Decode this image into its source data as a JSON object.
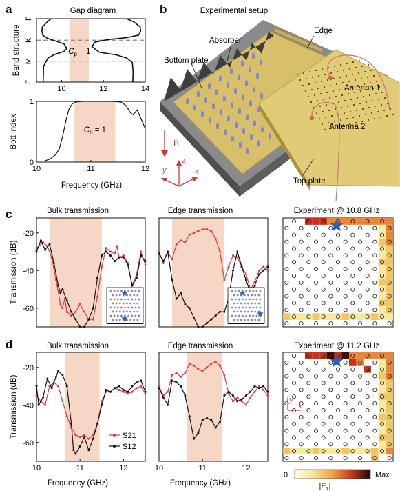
{
  "panel_letters": [
    "a",
    "b",
    "c",
    "d"
  ],
  "chart_data": [
    {
      "id": "a_top",
      "type": "line",
      "title": "Gap diagram",
      "ylabel": "Band structure",
      "xlim": [
        8.8,
        14
      ],
      "xticks": [
        10,
        12,
        14
      ],
      "yticks": [
        "Γ",
        "K",
        "M",
        "Γ"
      ],
      "band_gap": [
        10.4,
        11.3
      ],
      "annotation": {
        "main": "C",
        "sub": "p",
        "rest": " = 1"
      },
      "series": [
        {
          "x": [
            9.5,
            9.35,
            9.08,
            9.06,
            9.1,
            9.32,
            9.7,
            10.12,
            10.25,
            10.1,
            9.7,
            9.35,
            9.14,
            9.12
          ],
          "y": [
            0.0,
            0.04,
            0.13,
            0.2,
            0.26,
            0.31,
            0.35,
            0.4,
            0.47,
            0.52,
            0.56,
            0.62,
            0.75,
            1.0
          ]
        },
        {
          "x": [
            13.1,
            13.45,
            13.76,
            13.78,
            13.68,
            13.1,
            12.2,
            11.6,
            11.45,
            11.8,
            12.6,
            13.1,
            13.38,
            13.42,
            13.4
          ],
          "y": [
            0.0,
            0.05,
            0.13,
            0.2,
            0.26,
            0.3,
            0.33,
            0.37,
            0.44,
            0.53,
            0.57,
            0.62,
            0.69,
            0.85,
            1.0
          ]
        }
      ]
    },
    {
      "id": "a_bottom",
      "type": "line",
      "ylabel": "Bott index",
      "xlabel": "Frequency (GHz)",
      "xlim": [
        10,
        12
      ],
      "ylim": [
        0,
        1
      ],
      "xticks": [
        10,
        11,
        12
      ],
      "yticks": [
        0,
        1
      ],
      "band_gap": [
        10.7,
        11.45
      ],
      "annotation": {
        "main": "C",
        "sub": "b",
        "rest": " = 1"
      },
      "series": [
        {
          "x": [
            10.15,
            10.25,
            10.35,
            10.42,
            10.48,
            10.55,
            10.6,
            10.66,
            10.72,
            10.85,
            11.0,
            11.2,
            11.4,
            11.55,
            11.65,
            11.72,
            11.78,
            11.85,
            11.92,
            12.0
          ],
          "y": [
            0.02,
            0.05,
            0.12,
            0.22,
            0.42,
            0.72,
            0.88,
            0.96,
            0.99,
            1.0,
            1.0,
            1.0,
            1.0,
            0.99,
            0.93,
            0.82,
            0.78,
            0.86,
            0.72,
            0.55
          ]
        }
      ]
    },
    {
      "id": "c_bulk",
      "type": "line",
      "title": "Bulk transmission",
      "ylabel": "Transmission (dB)",
      "xlim": [
        10,
        12.5
      ],
      "ylim": [
        -70,
        -12
      ],
      "yticks": [
        -20,
        -40,
        -60
      ],
      "band_gap": [
        10.3,
        11.5
      ],
      "series": [
        {
          "name": "S21",
          "x": [
            10.0,
            10.15,
            10.25,
            10.35,
            10.45,
            10.55,
            10.6,
            10.65,
            10.7,
            10.8,
            10.9,
            11.0,
            11.1,
            11.2,
            11.3,
            11.4,
            11.5,
            11.6,
            11.7,
            11.8,
            11.85,
            11.9,
            12.0,
            12.1,
            12.2,
            12.3,
            12.4,
            12.5
          ],
          "y": [
            -28,
            -25,
            -27,
            -33,
            -45,
            -58,
            -60,
            -55,
            -62,
            -64,
            -62,
            -58,
            -62,
            -66,
            -66,
            -54,
            -38,
            -28,
            -30,
            -31,
            -27,
            -33,
            -32,
            -36,
            -48,
            -42,
            -30,
            -37
          ]
        },
        {
          "name": "S12",
          "x": [
            10.0,
            10.1,
            10.2,
            10.3,
            10.4,
            10.5,
            10.55,
            10.6,
            10.7,
            10.8,
            10.9,
            11.0,
            11.1,
            11.2,
            11.3,
            11.4,
            11.5,
            11.6,
            11.7,
            11.8,
            11.9,
            12.0,
            12.1,
            12.2,
            12.3,
            12.4,
            12.5
          ],
          "y": [
            -30,
            -24,
            -29,
            -26,
            -36,
            -48,
            -52,
            -50,
            -56,
            -62,
            -66,
            -70,
            -70,
            -66,
            -60,
            -44,
            -32,
            -30,
            -32,
            -35,
            -33,
            -33,
            -37,
            -48,
            -44,
            -32,
            -35
          ]
        }
      ]
    },
    {
      "id": "c_edge",
      "type": "line",
      "title": "Edge transmission",
      "xlim": [
        10,
        12.5
      ],
      "ylim": [
        -70,
        -12
      ],
      "band_gap": [
        10.3,
        11.5
      ],
      "series": [
        {
          "name": "S21",
          "x": [
            10.0,
            10.1,
            10.2,
            10.3,
            10.4,
            10.5,
            10.6,
            10.7,
            10.8,
            10.9,
            11.0,
            11.1,
            11.2,
            11.3,
            11.4,
            11.5,
            11.6,
            11.7,
            11.8,
            11.9,
            12.0,
            12.1,
            12.2,
            12.3,
            12.4,
            12.5
          ],
          "y": [
            -30,
            -36,
            -30,
            -34,
            -26,
            -24,
            -25,
            -21,
            -20,
            -19,
            -18,
            -18,
            -19,
            -23,
            -30,
            -45,
            -38,
            -32,
            -33,
            -38,
            -42,
            -50,
            -46,
            -40,
            -38,
            -40
          ]
        },
        {
          "name": "S12",
          "x": [
            10.0,
            10.1,
            10.2,
            10.3,
            10.4,
            10.5,
            10.6,
            10.7,
            10.8,
            10.9,
            11.0,
            11.1,
            11.2,
            11.3,
            11.4,
            11.5,
            11.6,
            11.7,
            11.8,
            11.9,
            12.0,
            12.1,
            12.2,
            12.3,
            12.4,
            12.5
          ],
          "y": [
            -31,
            -35,
            -30,
            -45,
            -55,
            -52,
            -58,
            -60,
            -65,
            -70,
            -70,
            -68,
            -66,
            -64,
            -62,
            -62,
            -55,
            -40,
            -30,
            -38,
            -45,
            -52,
            -48,
            -42,
            -40,
            -38
          ]
        }
      ]
    },
    {
      "id": "d_bulk",
      "type": "line",
      "title": "Bulk transmission",
      "ylabel": "Transmission (dB)",
      "xlabel": "Frequency (GHz)",
      "xlim": [
        10,
        12.5
      ],
      "ylim": [
        -70,
        -12
      ],
      "xticks": [
        10,
        11,
        12
      ],
      "yticks": [
        -20,
        -40,
        -60
      ],
      "band_gap": [
        10.65,
        11.45
      ],
      "legend": "lower-right",
      "series": [
        {
          "name": "S21",
          "x": [
            10.0,
            10.1,
            10.2,
            10.3,
            10.4,
            10.5,
            10.6,
            10.7,
            10.8,
            10.9,
            11.0,
            11.1,
            11.2,
            11.3,
            11.4,
            11.5,
            11.6,
            11.7,
            11.8,
            11.9,
            12.0,
            12.1,
            12.2,
            12.3,
            12.4,
            12.5
          ],
          "y": [
            -35,
            -38,
            -40,
            -30,
            -28,
            -30,
            -38,
            -46,
            -52,
            -56,
            -57,
            -56,
            -58,
            -56,
            -50,
            -38,
            -33,
            -33,
            -31,
            -32,
            -33,
            -34,
            -33,
            -31,
            -30,
            -34
          ]
        },
        {
          "name": "S12",
          "x": [
            10.0,
            10.05,
            10.15,
            10.25,
            10.35,
            10.45,
            10.5,
            10.6,
            10.7,
            10.8,
            10.85,
            10.9,
            11.0,
            11.1,
            11.2,
            11.3,
            11.4,
            11.5,
            11.6,
            11.7,
            11.8,
            11.9,
            12.0,
            12.1,
            12.2,
            12.3,
            12.4,
            12.5
          ],
          "y": [
            -30,
            -40,
            -36,
            -26,
            -31,
            -25,
            -22,
            -24,
            -30,
            -50,
            -64,
            -66,
            -62,
            -57,
            -64,
            -58,
            -50,
            -40,
            -32,
            -33,
            -31,
            -30,
            -32,
            -33,
            -30,
            -28,
            -27,
            -33
          ]
        }
      ]
    },
    {
      "id": "d_edge",
      "type": "line",
      "title": "Edge transmission",
      "xlabel": "Frequency (GHz)",
      "xlim": [
        10,
        12.5
      ],
      "ylim": [
        -70,
        -12
      ],
      "xticks": [
        10,
        11,
        12
      ],
      "band_gap": [
        10.65,
        11.45
      ],
      "series": [
        {
          "name": "S21",
          "x": [
            10.0,
            10.1,
            10.2,
            10.3,
            10.4,
            10.5,
            10.6,
            10.7,
            10.8,
            10.9,
            11.0,
            11.1,
            11.2,
            11.3,
            11.4,
            11.5,
            11.6,
            11.7,
            11.8,
            11.9,
            12.0,
            12.1,
            12.2,
            12.3,
            12.4,
            12.5
          ],
          "y": [
            -30,
            -35,
            -33,
            -24,
            -23,
            -25,
            -23,
            -18,
            -19,
            -21,
            -22,
            -20,
            -18,
            -17,
            -19,
            -24,
            -34,
            -38,
            -36,
            -38,
            -40,
            -36,
            -33,
            -30,
            -32,
            -35
          ]
        },
        {
          "name": "S12",
          "x": [
            10.0,
            10.1,
            10.2,
            10.3,
            10.4,
            10.5,
            10.6,
            10.7,
            10.8,
            10.9,
            11.0,
            11.1,
            11.2,
            11.3,
            11.4,
            11.5,
            11.6,
            11.7,
            11.8,
            11.9,
            12.0,
            12.1,
            12.2,
            12.3,
            12.4,
            12.5
          ],
          "y": [
            -31,
            -36,
            -40,
            -27,
            -28,
            -30,
            -35,
            -46,
            -58,
            -55,
            -48,
            -47,
            -48,
            -52,
            -49,
            -35,
            -33,
            -35,
            -38,
            -37,
            -35,
            -33,
            -30,
            -31,
            -30,
            -33
          ]
        }
      ]
    }
  ],
  "legend_entries": [
    "S21",
    "S12"
  ],
  "heatmaps": [
    {
      "id": "c_map",
      "title": "Experiment @ 10.8 GHz"
    },
    {
      "id": "d_map",
      "title": "Experiment @ 11.2 GHz"
    }
  ],
  "colorbar": {
    "min": "0",
    "max": "Max",
    "quantity_main": "|E",
    "quantity_sub": "z",
    "quantity_end": "|"
  },
  "setup": {
    "title": "Experimental setup",
    "labels": [
      "Absorber",
      "Edge",
      "Bottom plate",
      "Antenna 1",
      "Antenna 2",
      "Top plate"
    ],
    "field_label": "B",
    "axes": [
      "x",
      "y",
      "z"
    ]
  },
  "colors": {
    "s21": "#e0393e",
    "s12": "#111111",
    "gap": "#f6d6c4",
    "plate": "#d8c06a",
    "base": "#6e6e6e",
    "star": "#2f5fb8"
  }
}
